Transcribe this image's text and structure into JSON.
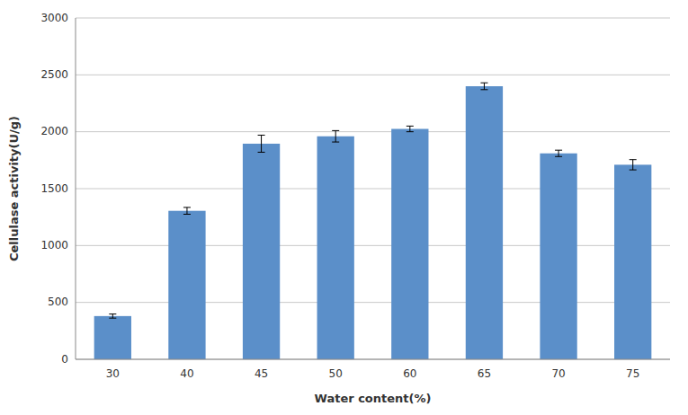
{
  "chart_data": {
    "type": "bar",
    "categories": [
      "30",
      "40",
      "45",
      "50",
      "60",
      "65",
      "70",
      "75"
    ],
    "values": [
      380,
      1305,
      1895,
      1960,
      2025,
      2400,
      1810,
      1710
    ],
    "errors": [
      18,
      30,
      75,
      50,
      25,
      30,
      28,
      45
    ],
    "color": "#5b8fc9",
    "xlabel": "Water content(%)",
    "ylabel": "Cellulase activity(U/g)",
    "ylim": [
      0,
      3000
    ],
    "yticks": [
      0,
      500,
      1000,
      1500,
      2000,
      2500,
      3000
    ],
    "grid": true
  }
}
